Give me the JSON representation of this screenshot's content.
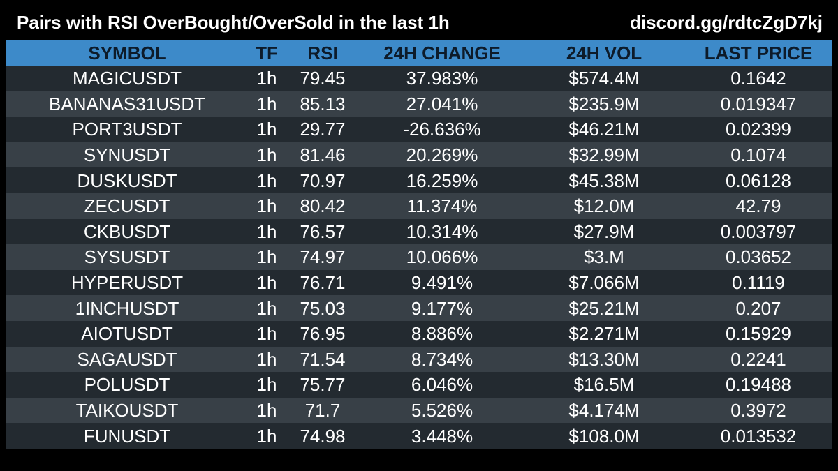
{
  "header": {
    "title": "Pairs with RSI OverBought/OverSold in the last 1h",
    "link": "discord.gg/rdtcZgD7kj"
  },
  "table": {
    "columns": [
      "SYMBOL",
      "TF",
      "RSI",
      "24H CHANGE",
      "24H VOL",
      "LAST PRICE"
    ],
    "rows": [
      [
        "MAGICUSDT",
        "1h",
        "79.45",
        "37.983%",
        "$574.4M",
        "0.1642"
      ],
      [
        "BANANAS31USDT",
        "1h",
        "85.13",
        "27.041%",
        "$235.9M",
        "0.019347"
      ],
      [
        "PORT3USDT",
        "1h",
        "29.77",
        "-26.636%",
        "$46.21M",
        "0.02399"
      ],
      [
        "SYNUSDT",
        "1h",
        "81.46",
        "20.269%",
        "$32.99M",
        "0.1074"
      ],
      [
        "DUSKUSDT",
        "1h",
        "70.97",
        "16.259%",
        "$45.38M",
        "0.06128"
      ],
      [
        "ZECUSDT",
        "1h",
        "80.42",
        "11.374%",
        "$12.0M",
        "42.79"
      ],
      [
        "CKBUSDT",
        "1h",
        "76.57",
        "10.314%",
        "$27.9M",
        "0.003797"
      ],
      [
        "SYSUSDT",
        "1h",
        "74.97",
        "10.066%",
        "$3.M",
        "0.03652"
      ],
      [
        "HYPERUSDT",
        "1h",
        "76.71",
        "9.491%",
        "$7.066M",
        "0.1119"
      ],
      [
        "1INCHUSDT",
        "1h",
        "75.03",
        "9.177%",
        "$25.21M",
        "0.207"
      ],
      [
        "AIOTUSDT",
        "1h",
        "76.95",
        "8.886%",
        "$2.271M",
        "0.15929"
      ],
      [
        "SAGAUSDT",
        "1h",
        "71.54",
        "8.734%",
        "$13.30M",
        "0.2241"
      ],
      [
        "POLUSDT",
        "1h",
        "75.77",
        "6.046%",
        "$16.5M",
        "0.19488"
      ],
      [
        "TAIKOUSDT",
        "1h",
        "71.7",
        "5.526%",
        "$4.174M",
        "0.3972"
      ],
      [
        "FUNUSDT",
        "1h",
        "74.98",
        "3.448%",
        "$108.0M",
        "0.013532"
      ]
    ]
  },
  "colors": {
    "background": "#000000",
    "header_row": "#3d8ac9",
    "header_text": "#0d1b2a",
    "row_dark": "#232a30",
    "row_light": "#384047",
    "text": "#ffffff"
  }
}
